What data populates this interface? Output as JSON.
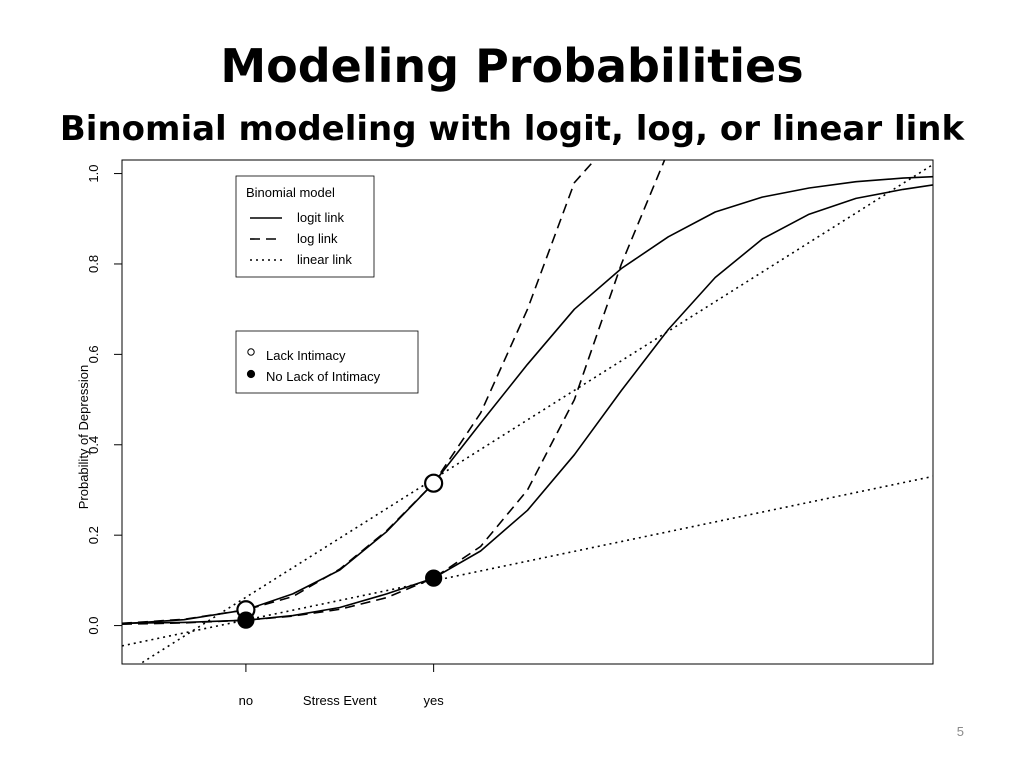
{
  "slide": {
    "title": "Modeling Probabilities",
    "subtitle": "Binomial modeling with logit, log, or linear link",
    "number": "5"
  },
  "chart_data": {
    "type": "line",
    "title": "",
    "xlabel": "Stress Event",
    "ylabel": "Probability of Depression",
    "x_tick_labels": [
      {
        "x": 0,
        "label": "no"
      },
      {
        "x": 1,
        "label": "yes"
      }
    ],
    "y_ticks": [
      0.0,
      0.2,
      0.4,
      0.6,
      0.8,
      1.0
    ],
    "y_tick_labels": [
      "0.0",
      "0.2",
      "0.4",
      "0.6",
      "0.8",
      "1.0"
    ],
    "xlim": [
      -0.66,
      3.66
    ],
    "ylim": [
      -0.085,
      1.03
    ],
    "grid": false,
    "legends": [
      {
        "title": "Binomial model",
        "placement": "upper-left",
        "entries": [
          {
            "label": "logit link",
            "dash": "solid"
          },
          {
            "label": "log link",
            "dash": "dashed"
          },
          {
            "label": "linear link",
            "dash": "dotted"
          }
        ]
      },
      {
        "title": "",
        "placement": "left-middle",
        "entries": [
          {
            "label": "Lack Intimacy",
            "marker": "open-circle"
          },
          {
            "label": "No Lack of Intimacy",
            "marker": "filled-circle"
          }
        ]
      }
    ],
    "points": [
      {
        "group": "Lack Intimacy",
        "x": 0,
        "y": 0.035,
        "marker": "open-circle"
      },
      {
        "group": "Lack Intimacy",
        "x": 1,
        "y": 0.315,
        "marker": "open-circle"
      },
      {
        "group": "No Lack of Intimacy",
        "x": 0,
        "y": 0.012,
        "marker": "filled-circle"
      },
      {
        "group": "No Lack of Intimacy",
        "x": 1,
        "y": 0.105,
        "marker": "filled-circle"
      }
    ],
    "series": [
      {
        "link": "logit",
        "group": "Lack Intimacy",
        "dash": "solid",
        "x": [
          -0.66,
          -0.33,
          0,
          0.25,
          0.5,
          0.75,
          1,
          1.25,
          1.5,
          1.75,
          2,
          2.25,
          2.5,
          2.75,
          3,
          3.25,
          3.5,
          3.66
        ],
        "y": [
          0.004,
          0.013,
          0.035,
          0.07,
          0.123,
          0.208,
          0.315,
          0.448,
          0.578,
          0.7,
          0.79,
          0.86,
          0.915,
          0.948,
          0.968,
          0.982,
          0.99,
          0.993
        ]
      },
      {
        "link": "logit",
        "group": "No Lack of Intimacy",
        "dash": "solid",
        "x": [
          -0.66,
          -0.33,
          0,
          0.25,
          0.5,
          0.75,
          1,
          1.25,
          1.5,
          1.75,
          2,
          2.25,
          2.5,
          2.75,
          3,
          3.25,
          3.5,
          3.66
        ],
        "y": [
          0.005,
          0.007,
          0.012,
          0.022,
          0.04,
          0.07,
          0.105,
          0.165,
          0.255,
          0.378,
          0.52,
          0.655,
          0.77,
          0.855,
          0.91,
          0.945,
          0.965,
          0.975
        ]
      },
      {
        "link": "log",
        "group": "Lack Intimacy",
        "dash": "dashed",
        "x": [
          -0.66,
          -0.33,
          0,
          0.25,
          0.5,
          0.75,
          1,
          1.25,
          1.5,
          1.75,
          1.9,
          2.0
        ],
        "y": [
          0.005,
          0.014,
          0.035,
          0.064,
          0.125,
          0.21,
          0.315,
          0.47,
          0.7,
          0.98,
          1.05,
          1.1
        ]
      },
      {
        "link": "log",
        "group": "No Lack of Intimacy",
        "dash": "dashed",
        "x": [
          -0.66,
          -0.33,
          0,
          0.25,
          0.5,
          0.75,
          1,
          1.25,
          1.5,
          1.75,
          2.0,
          2.25,
          2.4
        ],
        "y": [
          0.003,
          0.006,
          0.012,
          0.021,
          0.036,
          0.062,
          0.105,
          0.175,
          0.3,
          0.5,
          0.8,
          1.05,
          1.1
        ]
      },
      {
        "link": "linear",
        "group": "Lack Intimacy",
        "dash": "dotted",
        "x": [
          -0.66,
          3.66
        ],
        "y": [
          -0.11,
          1.02
        ]
      },
      {
        "link": "linear",
        "group": "No Lack of Intimacy",
        "dash": "dotted",
        "x": [
          -0.66,
          3.66
        ],
        "y": [
          -0.045,
          0.33
        ]
      }
    ]
  }
}
